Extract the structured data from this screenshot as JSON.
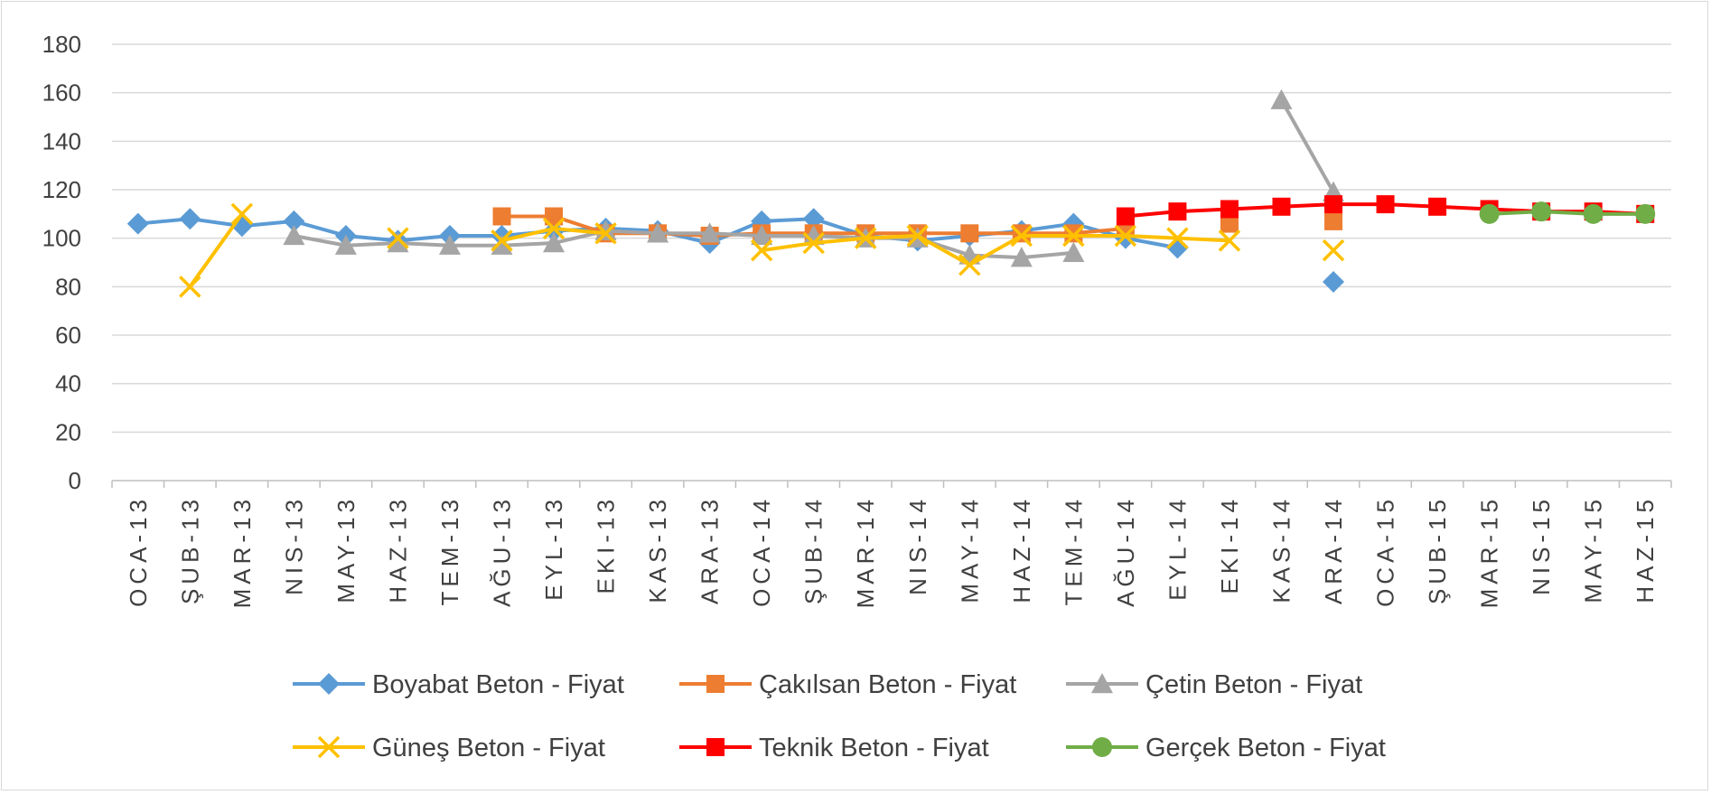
{
  "chart_data": {
    "type": "line",
    "title": "",
    "xlabel": "",
    "ylabel": "",
    "ylim": [
      0,
      180
    ],
    "yticks": [
      0,
      20,
      40,
      60,
      80,
      100,
      120,
      140,
      160,
      180
    ],
    "grid": true,
    "legend_position": "bottom",
    "categories": [
      "OCA-13",
      "ŞUB-13",
      "MAR-13",
      "NIS-13",
      "MAY-13",
      "HAZ-13",
      "TEM-13",
      "AĞU-13",
      "EYL-13",
      "EKI-13",
      "KAS-13",
      "ARA-13",
      "OCA-14",
      "ŞUB-14",
      "MAR-14",
      "NIS-14",
      "MAY-14",
      "HAZ-14",
      "TEM-14",
      "AĞU-14",
      "EYL-14",
      "EKI-14",
      "KAS-14",
      "ARA-14",
      "OCA-15",
      "ŞUB-15",
      "MAR-15",
      "NIS-15",
      "MAY-15",
      "HAZ-15"
    ],
    "series": [
      {
        "name": "Boyabat Beton - Fiyat",
        "color": "#5b9bd5",
        "marker": "diamond",
        "values": [
          106,
          108,
          105,
          107,
          101,
          99,
          101,
          101,
          103,
          104,
          103,
          98,
          107,
          108,
          101,
          99,
          101,
          103,
          106,
          100,
          96,
          null,
          null,
          82,
          null,
          null,
          null,
          null,
          null,
          null
        ]
      },
      {
        "name": "Çakılsan Beton - Fiyat",
        "color": "#ed7d31",
        "marker": "square",
        "values": [
          null,
          null,
          null,
          null,
          null,
          null,
          null,
          109,
          109,
          102,
          102,
          101,
          102,
          102,
          102,
          102,
          102,
          102,
          102,
          104,
          null,
          106,
          null,
          107,
          null,
          null,
          null,
          null,
          null,
          null
        ]
      },
      {
        "name": "Çetin Beton - Fiyat",
        "color": "#a5a5a5",
        "marker": "triangle",
        "values": [
          null,
          null,
          null,
          101,
          97,
          98,
          97,
          97,
          98,
          103,
          102,
          102,
          101,
          101,
          100,
          100,
          93,
          92,
          94,
          null,
          null,
          null,
          157,
          119,
          null,
          null,
          null,
          null,
          null,
          null
        ]
      },
      {
        "name": "Güneş Beton - Fiyat",
        "color": "#ffc000",
        "marker": "x",
        "values": [
          null,
          80,
          110,
          null,
          null,
          100,
          null,
          99,
          104,
          102,
          null,
          null,
          95,
          98,
          100,
          101,
          89,
          101,
          101,
          101,
          100,
          99,
          null,
          95,
          null,
          null,
          null,
          null,
          null,
          null
        ]
      },
      {
        "name": "Teknik Beton - Fiyat",
        "color": "#ff0000",
        "marker": "square",
        "values": [
          null,
          null,
          null,
          null,
          null,
          null,
          null,
          null,
          null,
          null,
          null,
          null,
          null,
          null,
          null,
          null,
          null,
          null,
          null,
          109,
          111,
          112,
          113,
          114,
          114,
          113,
          112,
          111,
          111,
          110
        ]
      },
      {
        "name": "Gerçek Beton - Fiyat",
        "color": "#70ad47",
        "marker": "circle",
        "values": [
          null,
          null,
          null,
          null,
          null,
          null,
          null,
          null,
          null,
          null,
          null,
          null,
          null,
          null,
          null,
          null,
          null,
          null,
          null,
          null,
          null,
          null,
          null,
          null,
          null,
          null,
          110,
          111,
          110,
          110
        ]
      }
    ]
  }
}
